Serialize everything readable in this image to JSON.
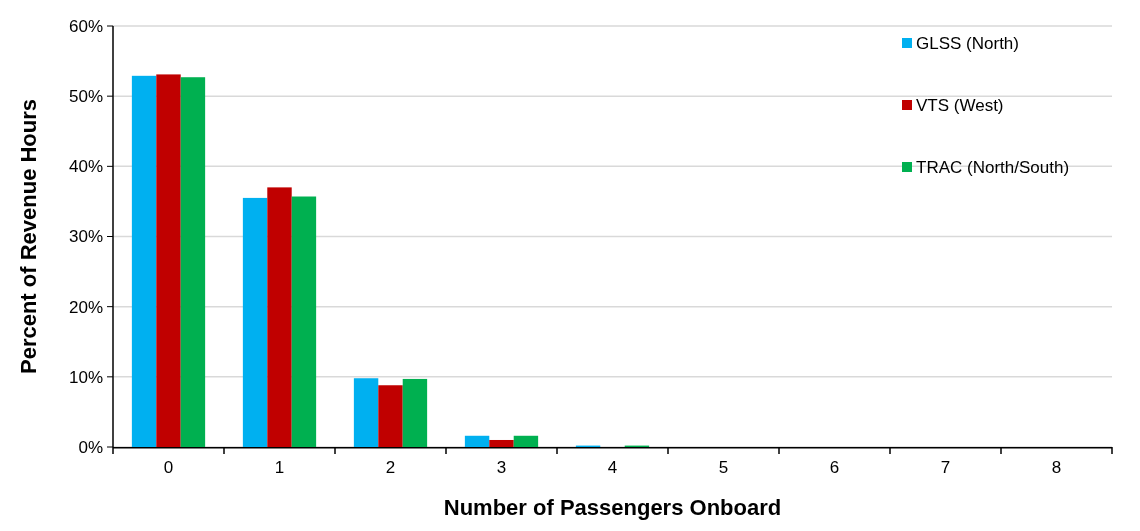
{
  "chart_data": {
    "type": "bar",
    "xlabel": "Number of Passengers Onboard",
    "ylabel": "Percent of Revenue Hours",
    "categories": [
      "0",
      "1",
      "2",
      "3",
      "4",
      "5",
      "6",
      "7",
      "8"
    ],
    "series": [
      {
        "name": "GLSS (North)",
        "color": "#00b0f0",
        "values": [
          52.9,
          35.5,
          9.8,
          1.6,
          0.2,
          0,
          0,
          0,
          0
        ]
      },
      {
        "name": "VTS (West)",
        "color": "#c00000",
        "values": [
          53.1,
          37.0,
          8.8,
          1.0,
          0,
          0,
          0,
          0,
          0
        ]
      },
      {
        "name": "TRAC (North/South)",
        "color": "#00b050",
        "values": [
          52.7,
          35.7,
          9.7,
          1.6,
          0.2,
          0,
          0,
          0,
          0
        ]
      }
    ],
    "ylim": [
      0,
      60
    ],
    "yticks": [
      {
        "value": 0,
        "label": "0%"
      },
      {
        "value": 10,
        "label": "10%"
      },
      {
        "value": 20,
        "label": "20%"
      },
      {
        "value": 30,
        "label": "30%"
      },
      {
        "value": 40,
        "label": "40%"
      },
      {
        "value": 50,
        "label": "50%"
      },
      {
        "value": 60,
        "label": "60%"
      }
    ],
    "grid": "y",
    "legend": "top right"
  }
}
